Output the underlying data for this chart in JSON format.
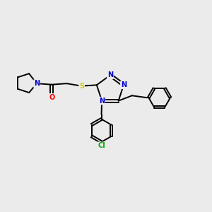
{
  "bg_color": "#ebebeb",
  "bond_color": "#000000",
  "N_color": "#0000cc",
  "O_color": "#ff0000",
  "S_color": "#cccc00",
  "Cl_color": "#00aa00",
  "line_width": 1.4,
  "figsize": [
    3.0,
    3.0
  ],
  "dpi": 100,
  "xlim": [
    0,
    10
  ],
  "ylim": [
    0,
    10
  ]
}
